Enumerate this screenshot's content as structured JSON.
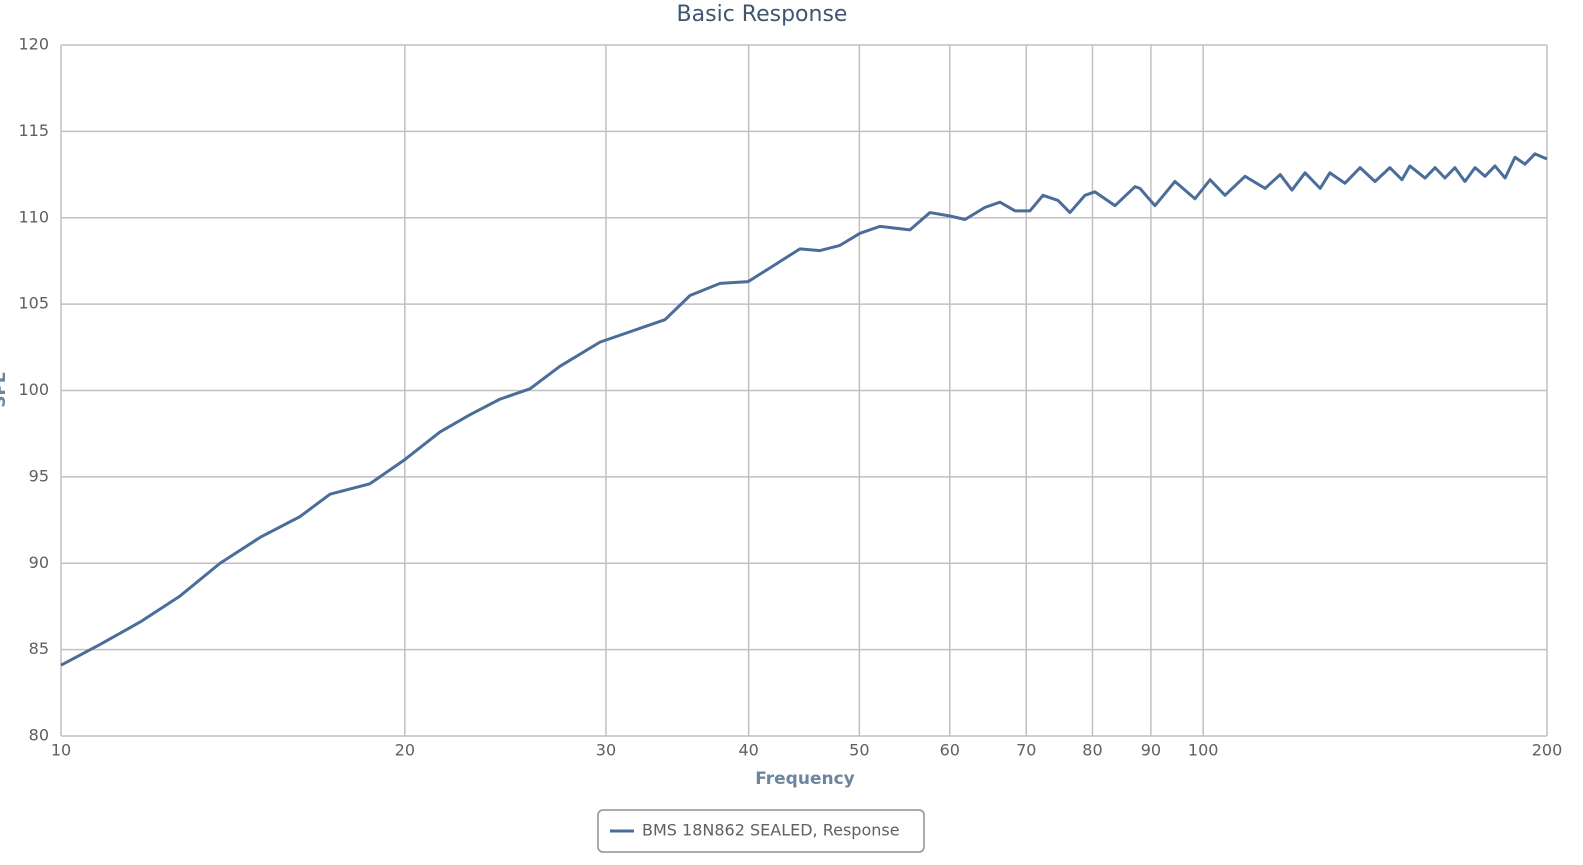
{
  "chart_data": {
    "type": "line",
    "title": "Basic Response",
    "x_label": "Frequency",
    "y_label": "SPL",
    "log_x": true,
    "grid": true,
    "legend": "bottom",
    "x": [
      10,
      10.82,
      11.73,
      12.71,
      13.78,
      14.94,
      16.19,
      17.2,
      18.64,
      20,
      21.47,
      22.81,
      24.23,
      25.74,
      27.34,
      29.64,
      32.13,
      33.79,
      35.54,
      37.76,
      39.95,
      41.76,
      44.36,
      46.18,
      48.08,
      50.06,
      52.12,
      55.37,
      57.65,
      60.02,
      61.87,
      64.41,
      66.39,
      68.43,
      70.53,
      72.4,
      74.63,
      76.45,
      78.8,
      80.4,
      83.71,
      87.16,
      88.03,
      90.74,
      94.47,
      98.36,
      101.4,
      104.5,
      108.8,
      113.3,
      116.8,
      119.6,
      122.8,
      126.6,
      129.1,
      133.1,
      137.2,
      141.4,
      145.7,
      149.3,
      151.7,
      156.4,
      159.6,
      162.8,
      166.1,
      169.5,
      173,
      176.5,
      180.1,
      183.8,
      187.5,
      191.3,
      195.2,
      200
    ],
    "series": [
      {
        "name": "BMS 18N862 SEALED, Response",
        "color": "#4a6d9a",
        "values": [
          84.1,
          85.3,
          86.6,
          88.1,
          90.0,
          91.5,
          92.7,
          94.0,
          94.6,
          96.0,
          97.6,
          98.6,
          99.5,
          100.1,
          101.4,
          102.8,
          103.6,
          104.1,
          105.5,
          106.2,
          106.3,
          107.1,
          108.2,
          108.1,
          108.4,
          109.1,
          109.5,
          109.3,
          110.3,
          110.1,
          109.9,
          110.6,
          110.9,
          110.4,
          110.4,
          111.3,
          111.0,
          110.3,
          111.3,
          111.5,
          110.7,
          111.8,
          111.7,
          110.7,
          112.1,
          111.1,
          112.2,
          111.3,
          112.4,
          111.7,
          112.5,
          111.6,
          112.6,
          111.7,
          112.6,
          112.0,
          112.9,
          112.1,
          112.9,
          112.2,
          113.0,
          112.3,
          112.9,
          112.3,
          112.9,
          112.1,
          112.9,
          112.4,
          113.0,
          112.3,
          113.5,
          113.1,
          113.7,
          113.4
        ]
      }
    ],
    "xlim": [
      10,
      200
    ],
    "xticks": [
      10,
      20,
      30,
      40,
      50,
      60,
      70,
      80,
      90,
      100,
      200
    ],
    "ylim": [
      80,
      120
    ],
    "yticks": [
      80,
      85,
      90,
      95,
      100,
      105,
      110,
      115,
      120
    ]
  }
}
